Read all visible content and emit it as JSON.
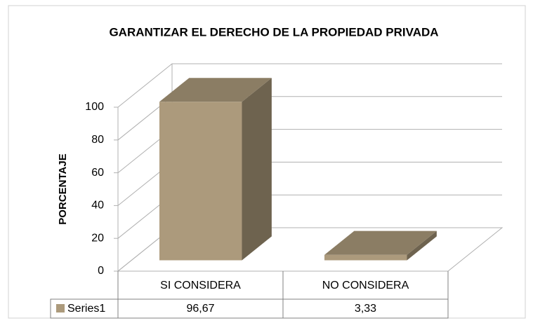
{
  "chart_data": {
    "type": "bar3d",
    "title": "GARANTIZAR EL DERECHO DE LA PROPIEDAD PRIVADA",
    "y_label": "PORCENTAJE",
    "categories": [
      "SI CONSIDERA",
      "NO CONSIDERA"
    ],
    "series": [
      {
        "name": "Series1",
        "color": "#ac9a7c",
        "values": [
          96.67,
          3.33
        ],
        "value_labels": [
          "96,67",
          "3,33"
        ]
      }
    ],
    "ylim": [
      0,
      100
    ],
    "yticks": [
      0,
      20,
      40,
      60,
      80,
      100
    ],
    "grid": true
  }
}
